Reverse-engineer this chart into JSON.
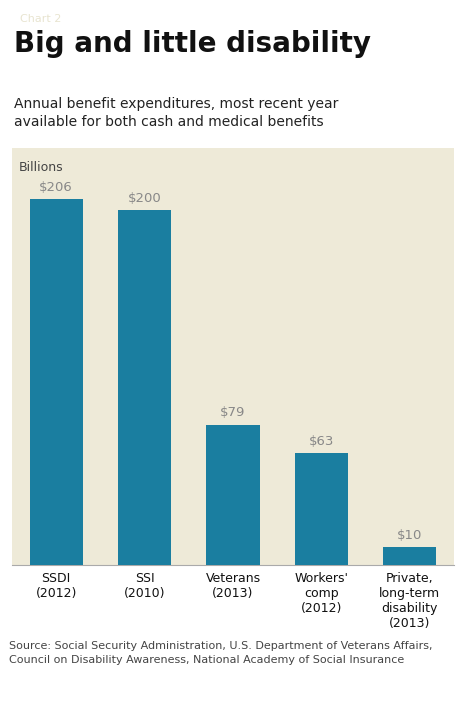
{
  "chart_label": "Chart 2",
  "title": "Big and little disability",
  "subtitle": "Annual benefit expenditures, most recent year\navailable for both cash and medical benefits",
  "ylabel": "Billions",
  "categories": [
    "SSDI\n(2012)",
    "SSI\n(2010)",
    "Veterans\n(2013)",
    "Workers'\ncomp\n(2012)",
    "Private,\nlong-term\ndisability\n(2013)"
  ],
  "values": [
    206,
    200,
    79,
    63,
    10
  ],
  "value_labels": [
    "$206",
    "$200",
    "$79",
    "$63",
    "$10"
  ],
  "bar_color": "#1a7ea0",
  "chart_bg": "#eeead8",
  "page_bg": "#ffffff",
  "source_text": "Source: Social Security Administration, U.S. Department of Veterans Affairs,\nCouncil on Disability Awareness, National Academy of Social Insurance",
  "chart_label_bg": "#5a5a5a",
  "chart_label_color": "#e8e4d0",
  "title_color": "#111111",
  "subtitle_color": "#222222",
  "value_label_color": "#888888",
  "ylabel_color": "#444444",
  "ylim": [
    0,
    235
  ]
}
